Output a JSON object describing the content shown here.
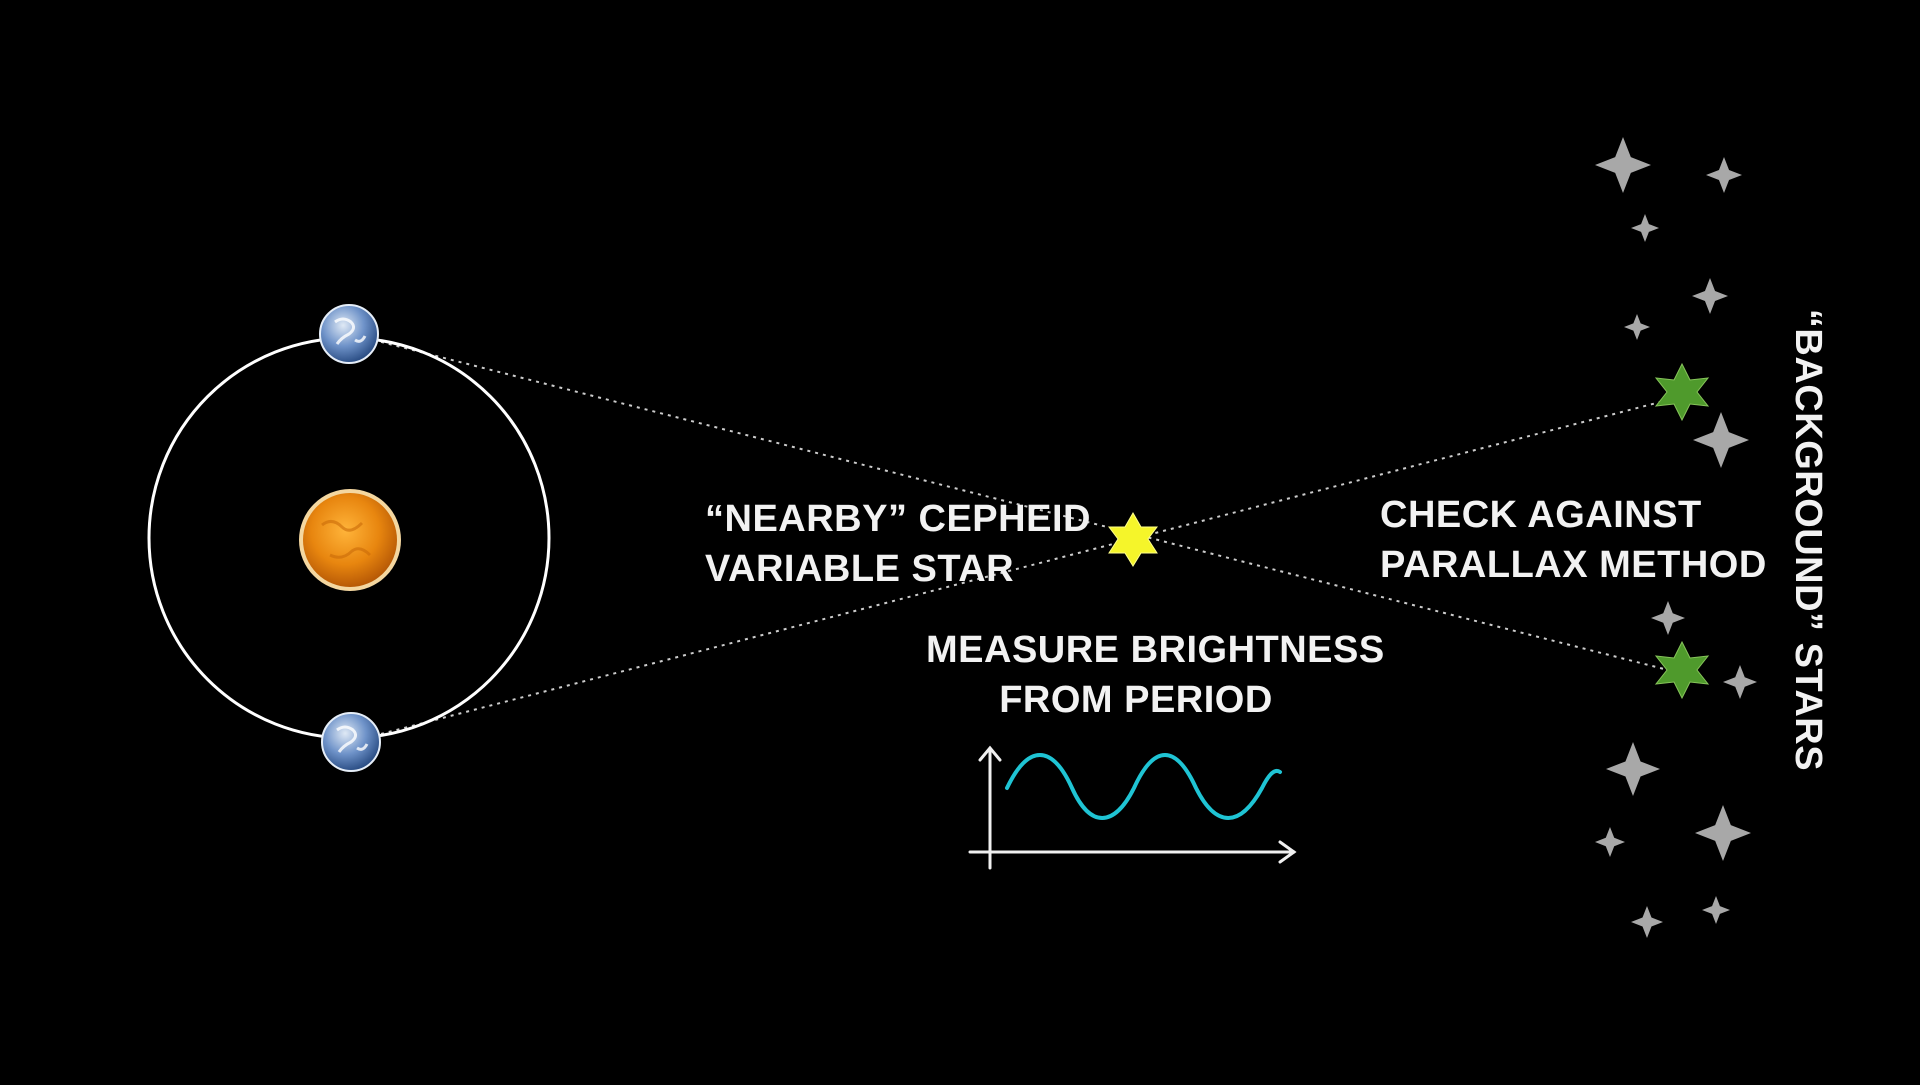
{
  "labels": {
    "cepheid_line1": "“NEARBY” CEPHEID",
    "cepheid_line2": "VARIABLE STAR",
    "measure_line1": "MEASURE BRIGHTNESS",
    "measure_line2": "FROM PERIOD",
    "check_line1": "CHECK AGAINST",
    "check_line2": "PARALLAX METHOD",
    "background_stars": "“BACKGROUND” STARS"
  },
  "colors": {
    "background": "#000000",
    "orbit": "#ffffff",
    "sun": "#e8860f",
    "earth": "#4f7fc0",
    "cepheid_star": "#f5f52a",
    "apparent_star_positions": "#4f9a2c",
    "background_star": "#a8a8a8",
    "brightness_wave": "#1fc4d4",
    "sight_lines": "#cccccc",
    "text": "#f2f2f2"
  },
  "icons": {
    "sun": "sun-icon",
    "earth": "earth-icon",
    "cepheid": "star-icon",
    "background_star": "sparkle-star-icon"
  }
}
